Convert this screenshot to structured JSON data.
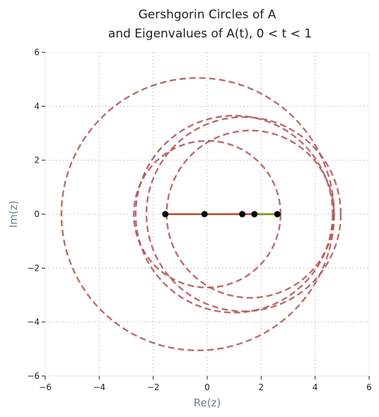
{
  "chart_data": {
    "type": "scatter",
    "title_line1": "Gershgorin Circles of A",
    "title_line2": "and Eigenvalues of A(t), 0 < t < 1",
    "xlabel": "Re(z)",
    "ylabel": "Im(z)",
    "xlim": [
      -6,
      6
    ],
    "ylim": [
      -6,
      6
    ],
    "xticks": [
      -6,
      -4,
      -2,
      0,
      2,
      4,
      6
    ],
    "yticks": [
      -6,
      -4,
      -2,
      0,
      2,
      4,
      6
    ],
    "grid": true,
    "circles": [
      {
        "center": [
          -0.35,
          0
        ],
        "radius": 5.05
      },
      {
        "center": [
          1.0,
          0
        ],
        "radius": 3.65
      },
      {
        "center": [
          1.35,
          0
        ],
        "radius": 3.6
      },
      {
        "center": [
          1.6,
          0
        ],
        "radius": 3.1
      },
      {
        "center": [
          0.0,
          0
        ],
        "radius": 2.72
      }
    ],
    "eigenvalue_paths": [
      {
        "from": [
          -1.55,
          0
        ],
        "to": [
          2.6,
          0
        ],
        "color": "#c0431e"
      },
      {
        "from": [
          1.75,
          0
        ],
        "to": [
          2.6,
          0
        ],
        "color": "#7f9a12"
      }
    ],
    "eigenvalues": [
      {
        "x": -1.55,
        "y": 0
      },
      {
        "x": -0.1,
        "y": 0
      },
      {
        "x": 1.3,
        "y": 0
      },
      {
        "x": 1.75,
        "y": 0
      },
      {
        "x": 2.6,
        "y": 0
      }
    ],
    "colors": {
      "circle": "#b05252",
      "grid": "#c8c8c8",
      "spine": "#efe9d6",
      "point": "#000000"
    }
  }
}
